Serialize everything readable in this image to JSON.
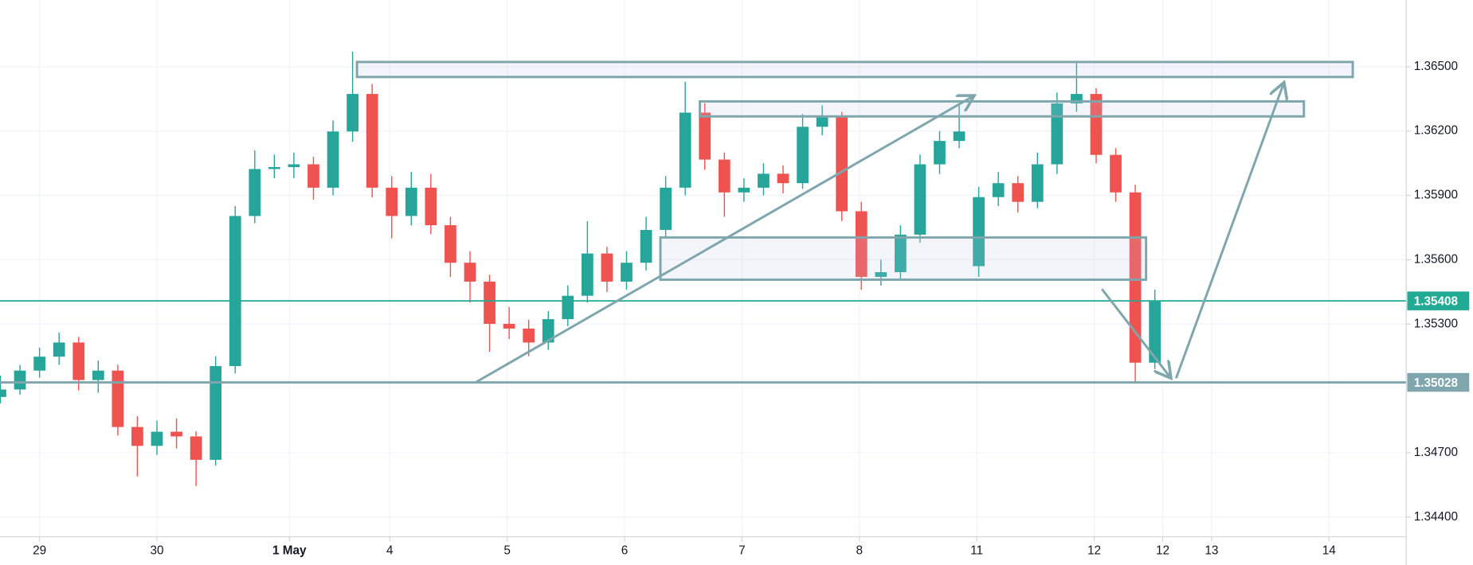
{
  "chart_data": {
    "type": "candlestick",
    "x": [
      -2,
      -1,
      0,
      1,
      2,
      3,
      4,
      5,
      6,
      7,
      8,
      9,
      10,
      11,
      12,
      13,
      14,
      15,
      16,
      17,
      18,
      19,
      20,
      21,
      22,
      23,
      24,
      25,
      26,
      27,
      28,
      29,
      30,
      31,
      32,
      33,
      34,
      35,
      36,
      37,
      38,
      39,
      40,
      41,
      42,
      43,
      44,
      45,
      46,
      47,
      48,
      49,
      50,
      51,
      52,
      53,
      54,
      55,
      56,
      57
    ],
    "open": [
      1.3496,
      1.34995,
      1.35083,
      1.35148,
      1.35214,
      1.35039,
      1.35083,
      1.3482,
      1.34732,
      1.34798,
      1.34776,
      1.34667,
      1.35104,
      1.35804,
      1.36023,
      1.36032,
      1.36045,
      1.35936,
      1.36198,
      1.36373,
      1.35936,
      1.35804,
      1.35936,
      1.35761,
      1.35586,
      1.35498,
      1.35301,
      1.35279,
      1.35214,
      1.35323,
      1.35432,
      1.35629,
      1.35498,
      1.35586,
      1.35739,
      1.35936,
      1.36286,
      1.36067,
      1.35914,
      1.35936,
      1.36001,
      1.35957,
      1.3622,
      1.36264,
      1.35826,
      1.3552,
      1.35542,
      1.35717,
      1.36045,
      1.36154,
      1.3557,
      1.35892,
      1.35957,
      1.3587,
      1.36045,
      1.36329,
      1.36373,
      1.36089,
      1.35914,
      1.3512
    ],
    "high": [
      1.3506,
      1.3511,
      1.3519,
      1.3526,
      1.3524,
      1.3513,
      1.3511,
      1.3487,
      1.3485,
      1.3486,
      1.348,
      1.3515,
      1.3585,
      1.3611,
      1.3609,
      1.361,
      1.3608,
      1.3625,
      1.3657,
      1.3642,
      1.3599,
      1.3601,
      1.36,
      1.358,
      1.3564,
      1.3553,
      1.3538,
      1.3532,
      1.3536,
      1.3548,
      1.3578,
      1.3566,
      1.3564,
      1.358,
      1.3599,
      1.3643,
      1.3633,
      1.361,
      1.3598,
      1.3605,
      1.3604,
      1.3628,
      1.3632,
      1.3629,
      1.3587,
      1.356,
      1.3576,
      1.3609,
      1.362,
      1.3633,
      1.3594,
      1.3601,
      1.3599,
      1.361,
      1.3638,
      1.36526,
      1.364,
      1.3612,
      1.3595,
      1.3546
    ],
    "low": [
      1.3493,
      1.3497,
      1.3505,
      1.3511,
      1.3499,
      1.3498,
      1.3478,
      1.3459,
      1.3469,
      1.3472,
      1.34545,
      1.3464,
      1.3507,
      1.3577,
      1.3598,
      1.3598,
      1.3588,
      1.359,
      1.3615,
      1.3589,
      1.357,
      1.3576,
      1.3572,
      1.3552,
      1.354,
      1.3517,
      1.3523,
      1.3515,
      1.3518,
      1.3529,
      1.354,
      1.3545,
      1.3546,
      1.3555,
      1.357,
      1.359,
      1.3602,
      1.358,
      1.3587,
      1.359,
      1.3591,
      1.3593,
      1.3618,
      1.3578,
      1.3546,
      1.3548,
      1.3551,
      1.3568,
      1.36,
      1.3612,
      1.3552,
      1.3585,
      1.3582,
      1.3584,
      1.36,
      1.3629,
      1.3605,
      1.3587,
      1.35028,
      1.3509
    ],
    "close": [
      1.34995,
      1.35083,
      1.35148,
      1.35214,
      1.35039,
      1.35083,
      1.3482,
      1.34732,
      1.34798,
      1.34776,
      1.34667,
      1.35104,
      1.35804,
      1.36023,
      1.36032,
      1.36045,
      1.35936,
      1.36198,
      1.36373,
      1.35936,
      1.35804,
      1.35936,
      1.35761,
      1.35586,
      1.35498,
      1.35301,
      1.35279,
      1.35214,
      1.35323,
      1.35432,
      1.35629,
      1.35498,
      1.35586,
      1.35739,
      1.35936,
      1.36286,
      1.36067,
      1.35914,
      1.35936,
      1.36001,
      1.35957,
      1.3622,
      1.36264,
      1.35826,
      1.3552,
      1.35542,
      1.35717,
      1.36045,
      1.36154,
      1.36198,
      1.35892,
      1.35957,
      1.3587,
      1.36045,
      1.36329,
      1.36373,
      1.36089,
      1.35914,
      1.3512,
      1.35408
    ],
    "up_color": "#26a69a",
    "down_color": "#ef5350",
    "xlim": [
      -2.02,
      69.85
    ],
    "ylim": [
      1.34308,
      1.36811
    ],
    "xticks": [
      {
        "value": 0,
        "label": "29"
      },
      {
        "value": 6,
        "label": "30"
      },
      {
        "value": 12.77,
        "label": "1 May"
      },
      {
        "value": 17.9,
        "label": "4"
      },
      {
        "value": 23.9,
        "label": "5"
      },
      {
        "value": 29.9,
        "label": "6"
      },
      {
        "value": 35.9,
        "label": "7"
      },
      {
        "value": 41.9,
        "label": "8"
      },
      {
        "value": 47.9,
        "label": "11"
      },
      {
        "value": 53.9,
        "label": "12"
      },
      {
        "value": 57.4,
        "label": "12"
      },
      {
        "value": 59.9,
        "label": "13"
      },
      {
        "value": 65.9,
        "label": "14"
      }
    ],
    "yticks": [
      {
        "value": 1.365,
        "label": "1.36500"
      },
      {
        "value": 1.362,
        "label": "1.36200"
      },
      {
        "value": 1.359,
        "label": "1.35900"
      },
      {
        "value": 1.356,
        "label": "1.35600"
      },
      {
        "value": 1.353,
        "label": "1.35300"
      },
      {
        "value": 1.347,
        "label": "1.34700"
      },
      {
        "value": 1.344,
        "label": "1.34400"
      }
    ],
    "price_lines": [
      {
        "value": 1.35408,
        "color": "#22ab94"
      },
      {
        "value": 1.35028,
        "color": "#7fa5ad"
      }
    ],
    "grid": true
  }
}
